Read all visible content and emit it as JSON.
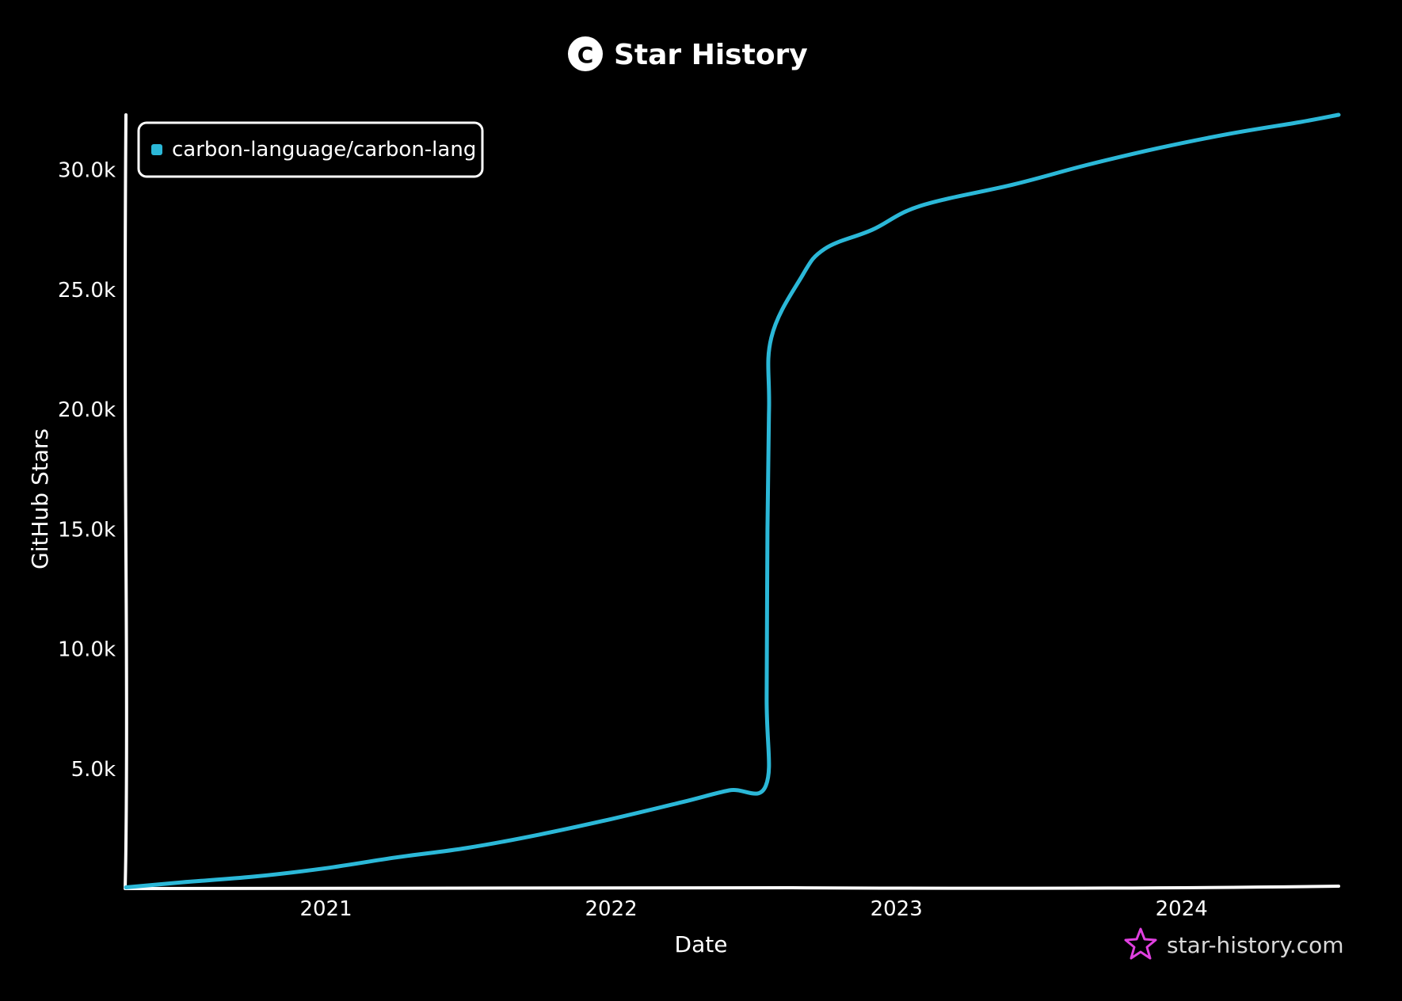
{
  "chart_data": {
    "type": "line",
    "title": "Star History",
    "title_logo_letter": "C",
    "xlabel": "Date",
    "ylabel": "GitHub Stars",
    "x_ticks": [
      "2021",
      "2022",
      "2023",
      "2024"
    ],
    "y_ticks": [
      "5.0k",
      "10.0k",
      "15.0k",
      "20.0k",
      "25.0k",
      "30.0k"
    ],
    "y_tick_values": [
      5000,
      10000,
      15000,
      20000,
      25000,
      30000
    ],
    "xlim": [
      "2020-04-20",
      "2024-07-20"
    ],
    "ylim": [
      0,
      32300
    ],
    "grid": false,
    "legend_position": "top-left",
    "colors": {
      "series": "#2bb8d8",
      "background": "#000000",
      "axis": "#ffffff",
      "watermark_icon": "#e040e0",
      "watermark_text": "#d9d9d9"
    },
    "series": [
      {
        "name": "carbon-language/carbon-lang",
        "points": [
          [
            "2020-04-20",
            50
          ],
          [
            "2020-07-01",
            260
          ],
          [
            "2020-10-01",
            500
          ],
          [
            "2021-01-01",
            850
          ],
          [
            "2021-04-01",
            1300
          ],
          [
            "2021-07-01",
            1700
          ],
          [
            "2021-10-01",
            2250
          ],
          [
            "2022-01-01",
            2900
          ],
          [
            "2022-04-01",
            3600
          ],
          [
            "2022-06-01",
            4100
          ],
          [
            "2022-07-18",
            4300
          ],
          [
            "2022-07-19",
            8000
          ],
          [
            "2022-07-20",
            15000
          ],
          [
            "2022-07-22",
            20000
          ],
          [
            "2022-07-25",
            23000
          ],
          [
            "2022-09-01",
            25500
          ],
          [
            "2022-10-01",
            26700
          ],
          [
            "2022-12-01",
            27500
          ],
          [
            "2023-02-01",
            28500
          ],
          [
            "2023-06-01",
            29400
          ],
          [
            "2023-09-01",
            30200
          ],
          [
            "2023-12-01",
            30900
          ],
          [
            "2024-03-01",
            31500
          ],
          [
            "2024-06-01",
            32000
          ],
          [
            "2024-07-20",
            32300
          ]
        ]
      }
    ]
  },
  "watermark": {
    "text": "star-history.com",
    "icon": "star-icon"
  }
}
